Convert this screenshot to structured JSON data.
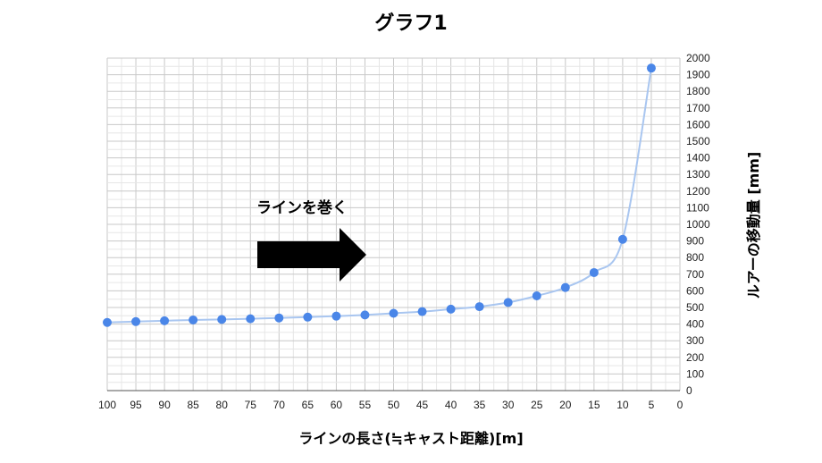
{
  "chart_data": {
    "type": "line",
    "title": "グラフ1",
    "xlabel": "ラインの長さ(≒キャスト距離)[m]",
    "ylabel": "ルアーの移動量 [mm]",
    "x_reversed": true,
    "xlim": [
      0,
      100
    ],
    "ylim": [
      0,
      2000
    ],
    "x_ticks": [
      "100",
      "95",
      "90",
      "85",
      "80",
      "75",
      "70",
      "65",
      "60",
      "55",
      "50",
      "45",
      "40",
      "35",
      "30",
      "25",
      "20",
      "15",
      "10",
      "5",
      "0"
    ],
    "y_ticks": [
      "0",
      "100",
      "200",
      "300",
      "400",
      "500",
      "600",
      "700",
      "800",
      "900",
      "1000",
      "1100",
      "1200",
      "1300",
      "1400",
      "1500",
      "1600",
      "1700",
      "1800",
      "1900",
      "2000"
    ],
    "grid": true,
    "smooth": true,
    "series": [
      {
        "color": "#4a86e8",
        "line_color": "#a9c6f0",
        "x": [
          100,
          95,
          90,
          85,
          80,
          75,
          70,
          65,
          60,
          55,
          50,
          45,
          40,
          35,
          30,
          25,
          20,
          15,
          10,
          5
        ],
        "y": [
          410,
          415,
          420,
          425,
          428,
          432,
          437,
          442,
          448,
          455,
          465,
          475,
          490,
          505,
          530,
          570,
          620,
          710,
          910,
          1940
        ]
      }
    ],
    "annotation": {
      "text": "ラインを巻く",
      "arrow": "right"
    }
  }
}
